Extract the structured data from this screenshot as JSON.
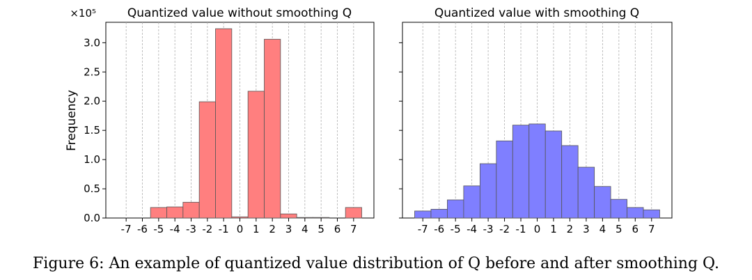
{
  "figure": {
    "caption": "Figure 6: An example of quantized value distribution of Q before and after smoothing Q."
  },
  "chart_data": [
    {
      "type": "bar",
      "title": "Quantized value without smoothing Q",
      "xlabel": "",
      "ylabel": "Frequency",
      "y_multiplier_label": "×10⁵",
      "categories": [
        "-7",
        "-6",
        "-5",
        "-4",
        "-3",
        "-2",
        "-1",
        "0",
        "1",
        "2",
        "3",
        "4",
        "5",
        "6",
        "7"
      ],
      "values": [
        0.0,
        0.0,
        0.18,
        0.19,
        0.27,
        1.99,
        3.24,
        0.02,
        2.17,
        3.06,
        0.07,
        0.01,
        0.01,
        0.0,
        0.18
      ],
      "value_scale": "×10^5",
      "ylim": [
        0,
        3.35
      ],
      "yticks": [
        "0.0",
        "0.5",
        "1.0",
        "1.5",
        "2.0",
        "2.5",
        "3.0"
      ],
      "color": "#ff7f7f",
      "grid": "vertical dashed"
    },
    {
      "type": "bar",
      "title": "Quantized value with smoothing Q",
      "xlabel": "",
      "ylabel": "",
      "categories": [
        "-7",
        "-6",
        "-5",
        "-4",
        "-3",
        "-2",
        "-1",
        "0",
        "1",
        "2",
        "3",
        "4",
        "5",
        "6",
        "7"
      ],
      "values": [
        0.12,
        0.15,
        0.31,
        0.55,
        0.93,
        1.32,
        1.59,
        1.61,
        1.49,
        1.24,
        0.87,
        0.54,
        0.32,
        0.18,
        0.14
      ],
      "value_scale": "×10^5",
      "ylim": [
        0,
        3.35
      ],
      "color": "#7f7fff",
      "grid": "vertical dashed"
    }
  ]
}
